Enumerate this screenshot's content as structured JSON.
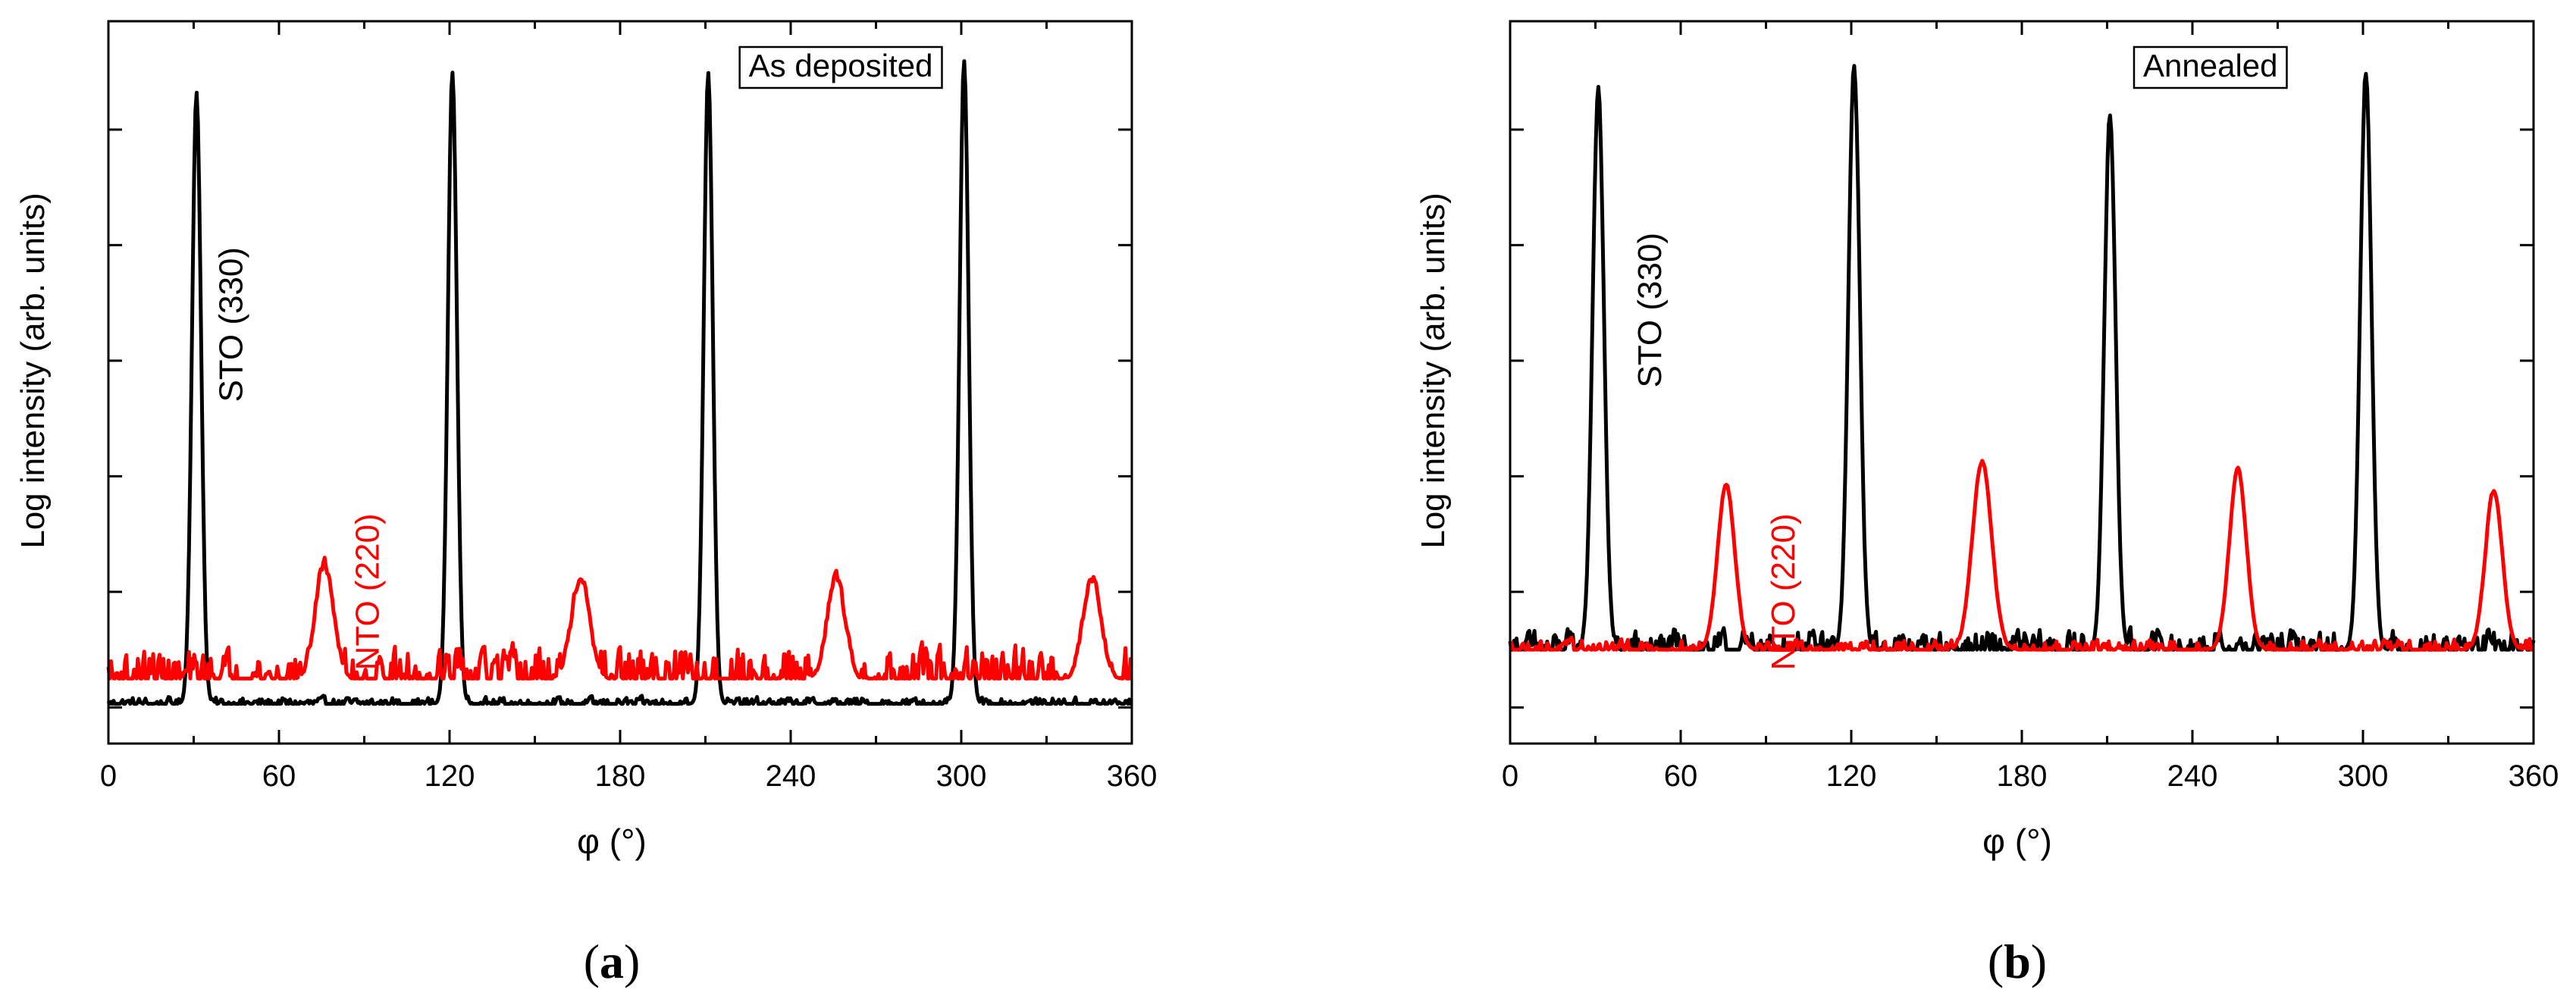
{
  "chart_data": [
    {
      "type": "line",
      "panel": "a",
      "panel_label_open": "(",
      "panel_label_letter": "a",
      "panel_label_close": ")",
      "inset_label": "As deposited",
      "xlabel": "φ (°)",
      "ylabel": "Log intensity (arb. units)",
      "xlim": [
        0,
        360
      ],
      "ylim": [
        0,
        10
      ],
      "xticks": [
        0,
        60,
        120,
        180,
        240,
        300,
        360
      ],
      "yticks_unlabeled": true,
      "annotations": [
        {
          "text": "STO (330)",
          "x": 47,
          "y": 5.8,
          "color": "#000000"
        },
        {
          "text": "NTO (220)",
          "x": 95,
          "y": 2.1,
          "color": "#ff0000"
        }
      ],
      "series": [
        {
          "name": "STO (330)",
          "color": "#000000",
          "baseline": 0.55,
          "noise": 0.12,
          "peaks": [
            {
              "x": 31,
              "height": 9.0,
              "width": 1.6
            },
            {
              "x": 121,
              "height": 9.3,
              "width": 1.6
            },
            {
              "x": 211,
              "height": 9.3,
              "width": 1.6
            },
            {
              "x": 301,
              "height": 9.45,
              "width": 1.6
            }
          ]
        },
        {
          "name": "NTO (220)",
          "color": "#ff0000",
          "baseline": 0.9,
          "noise": 0.55,
          "peaks": [
            {
              "x": 76,
              "height": 2.5,
              "width": 3.2
            },
            {
              "x": 166,
              "height": 2.3,
              "width": 3.2
            },
            {
              "x": 256,
              "height": 2.3,
              "width": 3.2
            },
            {
              "x": 346,
              "height": 2.3,
              "width": 3.2
            }
          ]
        }
      ]
    },
    {
      "type": "line",
      "panel": "b",
      "panel_label_open": "(",
      "panel_label_letter": "b",
      "panel_label_close": ")",
      "inset_label": "Annealed",
      "xlabel": "φ (°)",
      "ylabel": "Log intensity (arb. units)",
      "xlim": [
        0,
        360
      ],
      "ylim": [
        0,
        10
      ],
      "xticks": [
        0,
        60,
        120,
        180,
        240,
        300,
        360
      ],
      "yticks_unlabeled": true,
      "annotations": [
        {
          "text": "STO (330)",
          "x": 53,
          "y": 6.0,
          "color": "#000000"
        },
        {
          "text": "NTO (220)",
          "x": 100,
          "y": 2.1,
          "color": "#ff0000"
        }
      ],
      "series": [
        {
          "name": "STO (330)",
          "color": "#000000",
          "baseline": 1.3,
          "noise": 0.35,
          "peaks": [
            {
              "x": 31,
              "height": 9.05,
              "width": 2.0
            },
            {
              "x": 121,
              "height": 9.4,
              "width": 2.0
            },
            {
              "x": 211,
              "height": 8.7,
              "width": 2.0
            },
            {
              "x": 301,
              "height": 9.3,
              "width": 2.0
            }
          ]
        },
        {
          "name": "NTO (220)",
          "color": "#ff0000",
          "baseline": 1.3,
          "noise": 0.18,
          "peaks": [
            {
              "x": 76,
              "height": 3.6,
              "width": 3.0
            },
            {
              "x": 166,
              "height": 3.9,
              "width": 3.4
            },
            {
              "x": 256,
              "height": 3.8,
              "width": 3.0
            },
            {
              "x": 346,
              "height": 3.5,
              "width": 3.0
            }
          ]
        }
      ]
    }
  ]
}
